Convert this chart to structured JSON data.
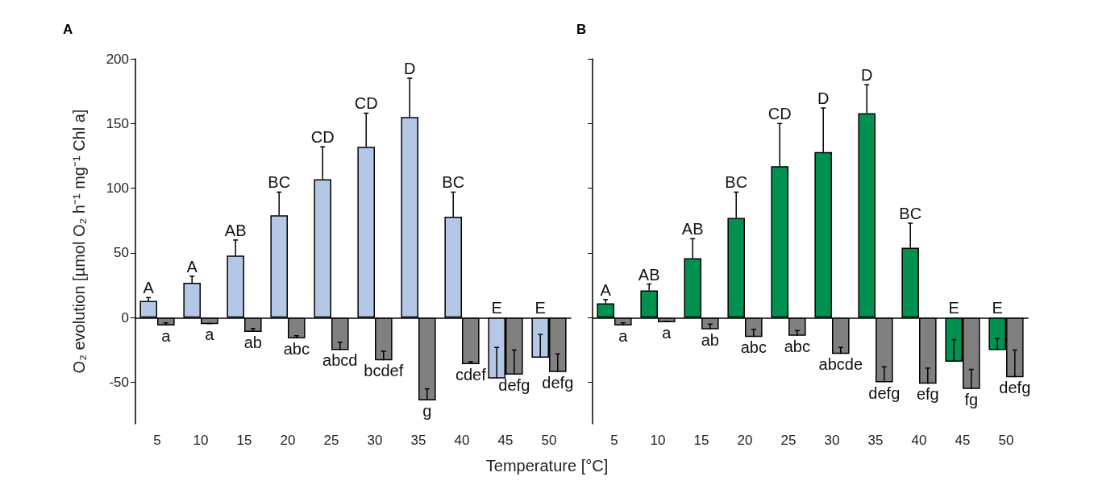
{
  "chart_data": [
    {
      "type": "bar",
      "title": "A",
      "xlabel": "Temperature [°C]",
      "ylabel": "O₂ evolution [µmol O₂ h⁻¹ mg⁻¹ Chl a]",
      "categories": [
        "5",
        "10",
        "15",
        "20",
        "25",
        "30",
        "35",
        "40",
        "45",
        "50"
      ],
      "series": [
        {
          "color": "#b4c7e7",
          "values": [
            13,
            27,
            48,
            79,
            107,
            132,
            155,
            78,
            -47,
            -31
          ],
          "errors": [
            [
              13,
              15.5
            ],
            [
              27,
              32
            ],
            [
              48,
              60
            ],
            [
              79,
              97
            ],
            [
              107,
              132
            ],
            [
              132,
              158
            ],
            [
              155,
              185
            ],
            [
              78,
              97
            ],
            [
              -47,
              -23
            ],
            [
              -31,
              -13
            ]
          ]
        },
        {
          "color": "#808080",
          "values": [
            -6,
            -5,
            -11,
            -16,
            -25,
            -33,
            -64,
            -36,
            -44,
            -42
          ],
          "errors": [
            [
              -6,
              -4
            ],
            [
              -5,
              -4.5
            ],
            [
              -11,
              -8.5
            ],
            [
              -16,
              -14
            ],
            [
              -25,
              -19
            ],
            [
              -33,
              -26
            ],
            [
              -64,
              -55
            ],
            [
              -36,
              -34
            ],
            [
              -44,
              -25
            ],
            [
              -42,
              -28
            ]
          ]
        }
      ],
      "ylim": [
        -82,
        200
      ],
      "yticks": [
        -50,
        0,
        50,
        100,
        150,
        200
      ],
      "annotations": [
        {
          "text": "A",
          "x": "5",
          "y": 13
        },
        {
          "text": "A",
          "x": "10",
          "y": 27
        },
        {
          "text": "AB",
          "x": "15",
          "y": 48
        },
        {
          "text": "BC",
          "x": "20",
          "y": 79
        },
        {
          "text": "CD",
          "x": "25",
          "y": 107
        },
        {
          "text": "CD",
          "x": "30",
          "y": 132
        },
        {
          "text": "D",
          "x": "35",
          "y": 155
        },
        {
          "text": "BC",
          "x": "40",
          "y": 78
        },
        {
          "text": "E",
          "x": "45",
          "y": 0
        },
        {
          "text": "E",
          "x": "50",
          "y": 0
        },
        {
          "text": "a",
          "x": "5",
          "y": -6
        },
        {
          "text": "a",
          "x": "10",
          "y": -5
        },
        {
          "text": "ab",
          "x": "15",
          "y": -11
        },
        {
          "text": "abc",
          "x": "20",
          "y": -16
        },
        {
          "text": "abcd",
          "x": "25",
          "y": -25
        },
        {
          "text": "bcdef",
          "x": "30",
          "y": -33
        },
        {
          "text": "g",
          "x": "35",
          "y": -64
        },
        {
          "text": "cdef",
          "x": "40",
          "y": -36
        },
        {
          "text": "defg",
          "x": "45",
          "y": -44
        },
        {
          "text": "defg",
          "x": "50",
          "y": -42
        }
      ]
    },
    {
      "type": "bar",
      "title": "B",
      "categories": [
        "5",
        "10",
        "15",
        "20",
        "25",
        "30",
        "35",
        "40",
        "45",
        "50"
      ],
      "series": [
        {
          "color": "#009150",
          "values": [
            11,
            21,
            46,
            77,
            117,
            128,
            158,
            54,
            -34,
            -25
          ],
          "errors": [
            [
              11,
              14
            ],
            [
              21,
              26
            ],
            [
              46,
              61
            ],
            [
              77,
              97
            ],
            [
              117,
              150
            ],
            [
              128,
              162
            ],
            [
              158,
              180
            ],
            [
              54,
              73
            ],
            [
              -34,
              -17
            ],
            [
              -25,
              -16
            ]
          ]
        },
        {
          "color": "#808080",
          "values": [
            -6,
            -3.5,
            -9,
            -15,
            -14,
            -28,
            -50,
            -51,
            -55,
            -46
          ],
          "errors": [
            [
              -6,
              -4
            ],
            [
              -3.5,
              -3
            ],
            [
              -9,
              -5
            ],
            [
              -15,
              -9
            ],
            [
              -14,
              -10
            ],
            [
              -28,
              -23
            ],
            [
              -50,
              -38
            ],
            [
              -51,
              -39
            ],
            [
              -55,
              -40
            ],
            [
              -46,
              -25
            ]
          ]
        }
      ],
      "ylim": [
        -82,
        200
      ],
      "yticks": [
        -50,
        0,
        50,
        100,
        150,
        200
      ],
      "tick_labels": "x",
      "annotations": [
        {
          "text": "A",
          "x": "5",
          "y": 11
        },
        {
          "text": "AB",
          "x": "10",
          "y": 21
        },
        {
          "text": "AB",
          "x": "15",
          "y": 46
        },
        {
          "text": "BC",
          "x": "20",
          "y": 77
        },
        {
          "text": "CD",
          "x": "25",
          "y": 117
        },
        {
          "text": "D",
          "x": "30",
          "y": 128
        },
        {
          "text": "D",
          "x": "35",
          "y": 158
        },
        {
          "text": "BC",
          "x": "40",
          "y": 54
        },
        {
          "text": "E",
          "x": "45",
          "y": 0
        },
        {
          "text": "E",
          "x": "50",
          "y": 0
        },
        {
          "text": "a",
          "x": "5",
          "y": -6
        },
        {
          "text": "a",
          "x": "10",
          "y": -3.5
        },
        {
          "text": "ab",
          "x": "15",
          "y": -9
        },
        {
          "text": "abc",
          "x": "20",
          "y": -15
        },
        {
          "text": "abc",
          "x": "25",
          "y": -14
        },
        {
          "text": "abcde",
          "x": "30",
          "y": -28
        },
        {
          "text": "defg",
          "x": "35",
          "y": -50
        },
        {
          "text": "efg",
          "x": "40",
          "y": -51
        },
        {
          "text": "fg",
          "x": "45",
          "y": -55
        },
        {
          "text": "defg",
          "x": "50",
          "y": -46
        }
      ]
    }
  ]
}
